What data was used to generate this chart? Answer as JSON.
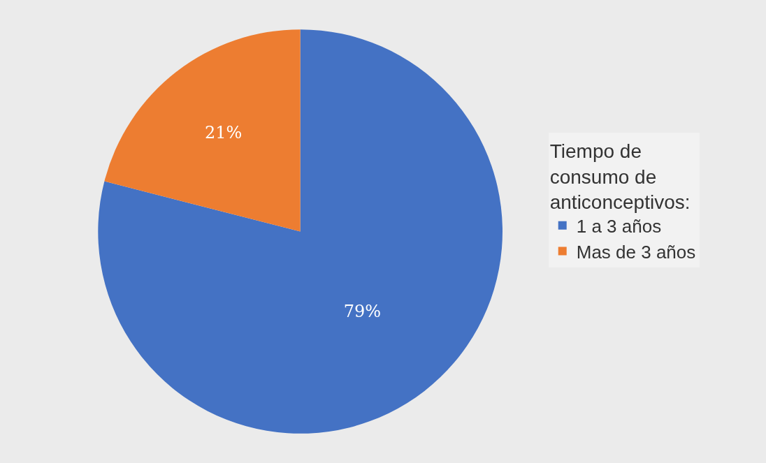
{
  "chart_data": {
    "type": "pie",
    "legend_title": "Tiempo de consumo de anticonceptivos:",
    "categories": [
      "1 a 3 años",
      "Mas de 3 años"
    ],
    "values": [
      79,
      21
    ],
    "colors": [
      "#4472c4",
      "#ed7d31"
    ],
    "value_labels": [
      "79%",
      "21%"
    ],
    "legend": "right"
  }
}
